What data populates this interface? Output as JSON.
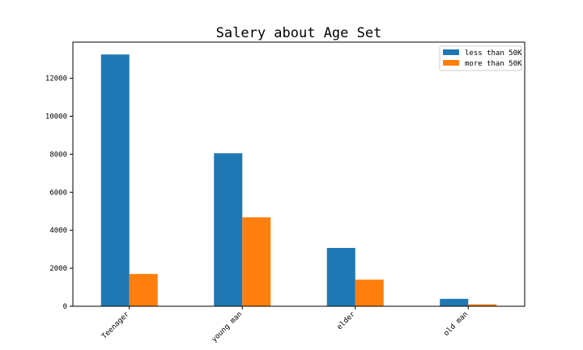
{
  "chart_data": {
    "type": "bar",
    "title": "Salery about Age Set",
    "xlabel": "",
    "ylabel": "",
    "categories": [
      "Teenager",
      "young man",
      "elder",
      "old man"
    ],
    "series": [
      {
        "name": "less than 50K",
        "values": [
          13250,
          8050,
          3070,
          390
        ],
        "color": "#1f77b4"
      },
      {
        "name": "more than 50K",
        "values": [
          1700,
          4680,
          1400,
          100
        ],
        "color": "#ff7f0e"
      }
    ],
    "ylim": [
      0,
      13900
    ],
    "yticks": [
      0,
      2000,
      4000,
      6000,
      8000,
      10000,
      12000
    ],
    "grid": false,
    "legend_position": "top-right"
  }
}
